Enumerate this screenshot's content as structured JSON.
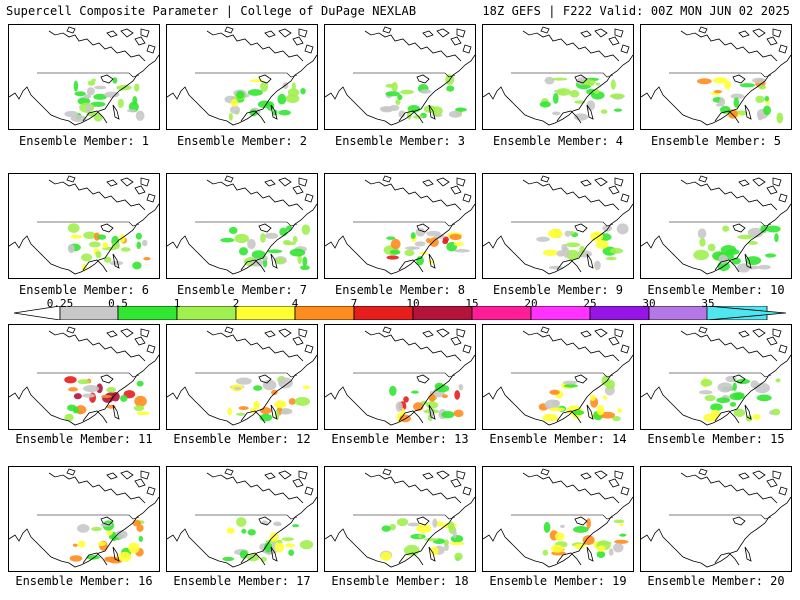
{
  "header": {
    "left_title": "Supercell Composite Parameter | College of DuPage NEXLAB",
    "right_title": "18Z GEFS | F222 Valid: 00Z MON JUN 02 2025"
  },
  "panels": [
    {
      "label": "Ensemble Member: 1",
      "intensity": 2
    },
    {
      "label": "Ensemble Member: 2",
      "intensity": 3
    },
    {
      "label": "Ensemble Member: 3",
      "intensity": 2
    },
    {
      "label": "Ensemble Member: 4",
      "intensity": 2
    },
    {
      "label": "Ensemble Member: 5",
      "intensity": 4
    },
    {
      "label": "Ensemble Member: 6",
      "intensity": 4
    },
    {
      "label": "Ensemble Member: 7",
      "intensity": 2
    },
    {
      "label": "Ensemble Member: 8",
      "intensity": 5
    },
    {
      "label": "Ensemble Member: 9",
      "intensity": 3
    },
    {
      "label": "Ensemble Member: 10",
      "intensity": 2
    },
    {
      "label": "Ensemble Member: 11",
      "intensity": 6
    },
    {
      "label": "Ensemble Member: 12",
      "intensity": 4
    },
    {
      "label": "Ensemble Member: 13",
      "intensity": 5
    },
    {
      "label": "Ensemble Member: 14",
      "intensity": 4
    },
    {
      "label": "Ensemble Member: 15",
      "intensity": 3
    },
    {
      "label": "Ensemble Member: 16",
      "intensity": 4
    },
    {
      "label": "Ensemble Member: 17",
      "intensity": 3
    },
    {
      "label": "Ensemble Member: 18",
      "intensity": 3
    },
    {
      "label": "Ensemble Member: 19",
      "intensity": 4
    },
    {
      "label": "Ensemble Member: 20",
      "intensity": 0
    }
  ],
  "colorbar": {
    "labels": [
      "0.25",
      "0.5",
      "1",
      "2",
      "4",
      "7",
      "10",
      "15",
      "20",
      "25",
      "30",
      "35"
    ],
    "colors": [
      "#c8c8c8",
      "#32e632",
      "#a0f050",
      "#ffff32",
      "#ff8c1e",
      "#e61e1e",
      "#b4143c",
      "#ff1e96",
      "#ff32ff",
      "#9614e6",
      "#b478e6",
      "#50e6f0"
    ]
  }
}
